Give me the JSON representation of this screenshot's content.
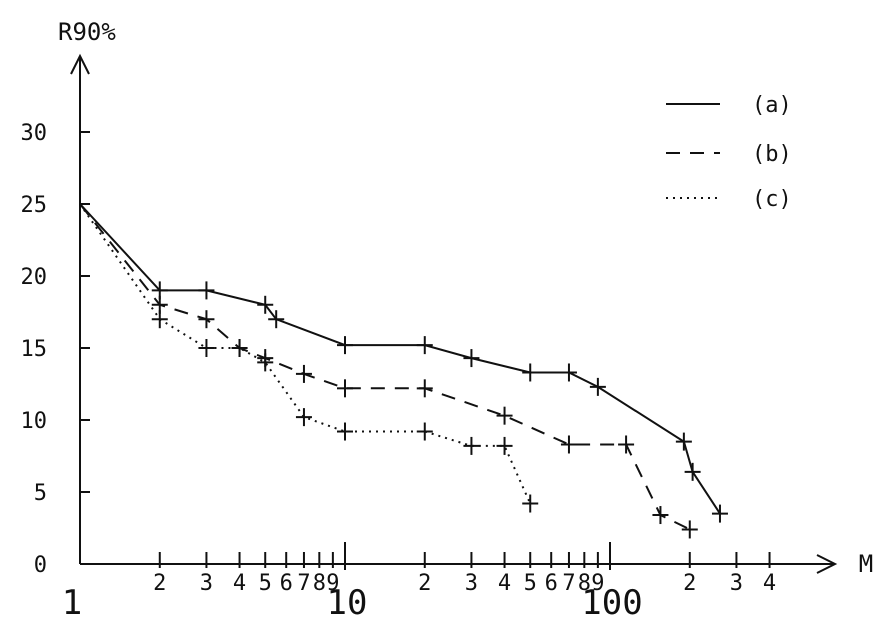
{
  "chart_data": {
    "type": "line",
    "title": "",
    "xlabel": "M",
    "ylabel": "R90%",
    "x_scale": "log",
    "xlim": [
      1,
      450
    ],
    "ylim": [
      0,
      34
    ],
    "grid": false,
    "legend_position": "top-right",
    "y_ticks": [
      {
        "value": 0,
        "label": "0"
      },
      {
        "value": 5,
        "label": "5"
      },
      {
        "value": 10,
        "label": "10"
      },
      {
        "value": 15,
        "label": "15"
      },
      {
        "value": 20,
        "label": "20"
      },
      {
        "value": 25,
        "label": "25"
      },
      {
        "value": 30,
        "label": "30"
      }
    ],
    "x_ticks": [
      {
        "value": 2,
        "label": "2"
      },
      {
        "value": 3,
        "label": "3"
      },
      {
        "value": 4,
        "label": "4"
      },
      {
        "value": 5,
        "label": "5"
      },
      {
        "value": 6,
        "label": "6"
      },
      {
        "value": 7,
        "label": "7"
      },
      {
        "value": 8,
        "label": "8"
      },
      {
        "value": 9,
        "label": "9"
      },
      {
        "value": 10,
        "label": ""
      },
      {
        "value": 20,
        "label": "2"
      },
      {
        "value": 30,
        "label": "3"
      },
      {
        "value": 40,
        "label": "4"
      },
      {
        "value": 50,
        "label": "5"
      },
      {
        "value": 60,
        "label": "6"
      },
      {
        "value": 70,
        "label": "7"
      },
      {
        "value": 80,
        "label": "8"
      },
      {
        "value": 90,
        "label": "9"
      },
      {
        "value": 100,
        "label": ""
      },
      {
        "value": 200,
        "label": "2"
      },
      {
        "value": 300,
        "label": "3"
      },
      {
        "value": 400,
        "label": "4"
      }
    ],
    "decade_labels": [
      {
        "value": 1,
        "label": "1"
      },
      {
        "value": 10,
        "label": "10"
      },
      {
        "value": 100,
        "label": "100"
      }
    ],
    "series": [
      {
        "name": "(a)",
        "style": "solid",
        "points": [
          [
            1,
            25
          ],
          [
            2,
            19
          ],
          [
            3,
            19
          ],
          [
            5,
            18
          ],
          [
            5.5,
            17
          ],
          [
            10,
            15.2
          ],
          [
            20,
            15.2
          ],
          [
            30,
            14.3
          ],
          [
            50,
            13.3
          ],
          [
            70,
            13.3
          ],
          [
            90,
            12.3
          ],
          [
            190,
            8.5
          ],
          [
            205,
            6.4
          ],
          [
            260,
            3.5
          ]
        ]
      },
      {
        "name": "(b)",
        "style": "dashed",
        "points": [
          [
            1,
            25
          ],
          [
            2,
            18
          ],
          [
            3,
            17
          ],
          [
            4,
            15
          ],
          [
            5,
            14.3
          ],
          [
            7,
            13.2
          ],
          [
            10,
            12.2
          ],
          [
            20,
            12.2
          ],
          [
            40,
            10.3
          ],
          [
            70,
            8.3
          ],
          [
            115,
            8.3
          ],
          [
            155,
            3.4
          ],
          [
            200,
            2.4
          ]
        ]
      },
      {
        "name": "(c)",
        "style": "dotted",
        "points": [
          [
            1,
            25
          ],
          [
            2,
            17
          ],
          [
            3,
            15
          ],
          [
            4,
            15
          ],
          [
            5,
            14
          ],
          [
            7,
            10.2
          ],
          [
            10,
            9.2
          ],
          [
            20,
            9.2
          ],
          [
            30,
            8.2
          ],
          [
            40,
            8.2
          ],
          [
            50,
            4.2
          ]
        ]
      }
    ]
  }
}
